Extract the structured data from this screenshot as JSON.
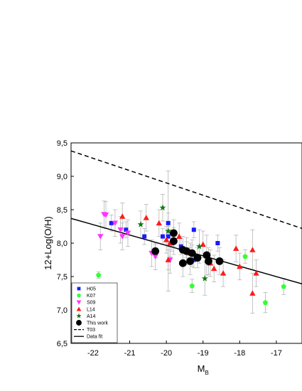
{
  "chart_data": {
    "type": "scatter",
    "xlabel": "M",
    "xlabel_sub": "B",
    "ylabel": "12+Log(O/H)",
    "xlim": [
      -22.6,
      -16.3
    ],
    "ylim": [
      6.5,
      9.5
    ],
    "xticks": [
      {
        "v": -22,
        "label": "-22"
      },
      {
        "v": -21,
        "label": "-21"
      },
      {
        "v": -20,
        "label": "-20"
      },
      {
        "v": -19,
        "label": "-19"
      },
      {
        "v": -18,
        "label": "-18"
      },
      {
        "v": -17,
        "label": "-17"
      }
    ],
    "yticks": [
      {
        "v": 6.5,
        "label": "6,5"
      },
      {
        "v": 7.0,
        "label": "7,0"
      },
      {
        "v": 7.5,
        "label": "7,5"
      },
      {
        "v": 8.0,
        "label": "8,0"
      },
      {
        "v": 8.5,
        "label": "8,5"
      },
      {
        "v": 9.0,
        "label": "9,0"
      },
      {
        "v": 9.5,
        "label": "9,5"
      }
    ],
    "grid": false,
    "legend_position": "bottom-left",
    "series": [
      {
        "name": "H05",
        "marker": "square",
        "color": "#1a1aff",
        "points": [
          {
            "x": -21.5,
            "y": 8.3,
            "e": 0.12
          },
          {
            "x": -21.1,
            "y": 8.2,
            "e": 0.12
          },
          {
            "x": -20.6,
            "y": 8.1,
            "e": 0.12
          },
          {
            "x": -20.1,
            "y": 8.1,
            "e": 0.12
          },
          {
            "x": -19.95,
            "y": 8.3,
            "e": 0.15
          },
          {
            "x": -19.95,
            "y": 8.1,
            "e": 0.15
          },
          {
            "x": -19.85,
            "y": 8.0,
            "e": 0.12
          },
          {
            "x": -19.6,
            "y": 7.95,
            "e": 0.12
          },
          {
            "x": -19.45,
            "y": 7.9,
            "e": 0.12
          },
          {
            "x": -19.3,
            "y": 7.85,
            "e": 0.12
          },
          {
            "x": -19.25,
            "y": 8.2,
            "e": 0.12
          },
          {
            "x": -19.25,
            "y": 7.75,
            "e": 0.12
          },
          {
            "x": -18.6,
            "y": 8.0,
            "e": 0.12
          }
        ]
      },
      {
        "name": "K07",
        "marker": "pentagon",
        "color": "#33ff33",
        "points": [
          {
            "x": -21.85,
            "y": 7.52,
            "e": 0.05
          },
          {
            "x": -19.3,
            "y": 7.36,
            "e": 0.1
          },
          {
            "x": -17.85,
            "y": 7.8,
            "e": 0.1
          },
          {
            "x": -17.3,
            "y": 7.11,
            "e": 0.15
          },
          {
            "x": -16.8,
            "y": 7.35,
            "e": 0.12
          }
        ]
      },
      {
        "name": "S09",
        "marker": "triangle-down",
        "color": "#ff33ff",
        "points": [
          {
            "x": -21.7,
            "y": 8.43,
            "e": 0.2
          },
          {
            "x": -21.65,
            "y": 8.42,
            "e": 0.2
          },
          {
            "x": -21.8,
            "y": 8.1,
            "e": 0.2
          },
          {
            "x": -21.4,
            "y": 8.3,
            "e": 0.2
          },
          {
            "x": -21.25,
            "y": 8.2,
            "e": 0.2
          },
          {
            "x": -21.2,
            "y": 8.1,
            "e": 0.2
          },
          {
            "x": -21.05,
            "y": 8.15,
            "e": 0.2
          },
          {
            "x": -20.4,
            "y": 7.85,
            "e": 0.2
          },
          {
            "x": -20.3,
            "y": 7.8,
            "e": 0.2
          },
          {
            "x": -19.9,
            "y": 7.75,
            "e": 0.2
          }
        ]
      },
      {
        "name": "L14",
        "marker": "triangle-up",
        "color": "#ff1a1a",
        "points": [
          {
            "x": -21.2,
            "y": 8.4,
            "e": 0.2
          },
          {
            "x": -20.55,
            "y": 8.38,
            "e": 0.2
          },
          {
            "x": -20.2,
            "y": 8.3,
            "e": 0.2
          },
          {
            "x": -20.0,
            "y": 8.05,
            "e": 0.2
          },
          {
            "x": -19.9,
            "y": 8.0,
            "e": 0.2
          },
          {
            "x": -19.65,
            "y": 8.1,
            "e": 0.2
          },
          {
            "x": -19.95,
            "y": 7.75,
            "e": 0.15
          },
          {
            "x": -19.35,
            "y": 7.85,
            "e": 0.15
          },
          {
            "x": -19.0,
            "y": 7.98,
            "e": 0.2
          },
          {
            "x": -18.8,
            "y": 7.7,
            "e": 0.2
          },
          {
            "x": -18.7,
            "y": 7.62,
            "e": 0.2
          },
          {
            "x": -18.45,
            "y": 7.55,
            "e": 0.2
          },
          {
            "x": -18.1,
            "y": 7.92,
            "e": 0.2
          },
          {
            "x": -18.0,
            "y": 7.65,
            "e": 0.2
          },
          {
            "x": -17.65,
            "y": 7.9,
            "e": 0.3
          },
          {
            "x": -17.65,
            "y": 7.25,
            "e": 0.3
          },
          {
            "x": -17.55,
            "y": 7.55,
            "e": 0.2
          }
        ]
      },
      {
        "name": "A14",
        "marker": "star",
        "color": "#117711",
        "points": [
          {
            "x": -20.7,
            "y": 8.28,
            "e": 0.2
          },
          {
            "x": -20.1,
            "y": 8.53,
            "e": 0.2
          },
          {
            "x": -19.95,
            "y": 8.18,
            "e": 0.9
          },
          {
            "x": -19.1,
            "y": 7.95,
            "e": 0.25
          },
          {
            "x": -18.95,
            "y": 7.47,
            "e": 0.25
          }
        ]
      },
      {
        "name": "This work",
        "marker": "circle",
        "color": "#000000",
        "points": [
          {
            "x": -20.3,
            "y": 7.88,
            "e": 0.1
          },
          {
            "x": -19.8,
            "y": 8.15,
            "e": 0.2
          },
          {
            "x": -19.8,
            "y": 8.03,
            "e": 0.2
          },
          {
            "x": -19.55,
            "y": 7.9,
            "e": 0.2
          },
          {
            "x": -19.45,
            "y": 7.88,
            "e": 0.2
          },
          {
            "x": -19.3,
            "y": 7.85,
            "e": 0.2
          },
          {
            "x": -19.55,
            "y": 7.7,
            "e": 0.2
          },
          {
            "x": -19.15,
            "y": 7.78,
            "e": 0.15
          },
          {
            "x": -18.9,
            "y": 7.82,
            "e": 0.3
          },
          {
            "x": -18.85,
            "y": 7.73,
            "e": 0.2
          },
          {
            "x": -18.55,
            "y": 7.73,
            "e": 0.2
          },
          {
            "x": -19.35,
            "y": 7.73,
            "e": 0.2
          }
        ]
      }
    ],
    "lines": [
      {
        "name": "T03",
        "style": "dashed",
        "x": [
          -22.6,
          -16.3
        ],
        "y": [
          9.38,
          8.22
        ]
      },
      {
        "name": "Data fit",
        "style": "solid",
        "x": [
          -22.6,
          -16.3
        ],
        "y": [
          8.37,
          7.39
        ]
      }
    ]
  }
}
